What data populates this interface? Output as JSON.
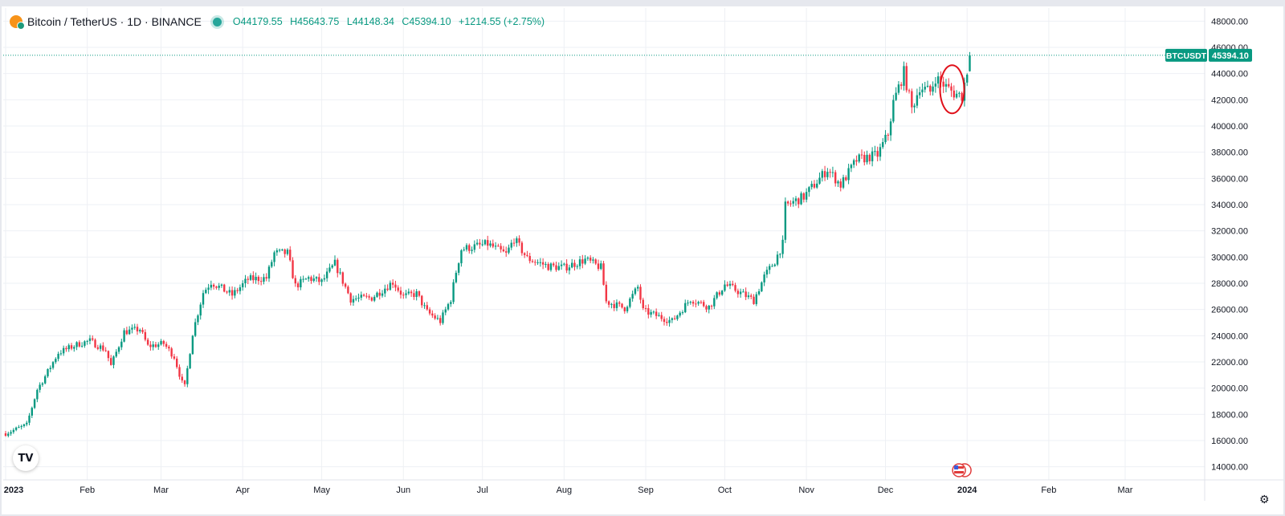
{
  "legend": {
    "symbol": "Bitcoin / TetherUS · 1D · BINANCE",
    "open": "O44179.55",
    "high": "H45643.75",
    "low": "L44148.34",
    "close": "C45394.10",
    "change": "+1214.55 (+2.75%)"
  },
  "price_tag": {
    "ticker": "BTCUSDT",
    "value": "45394.10"
  },
  "colors": {
    "up": "#089981",
    "down": "#f23645",
    "tag_bg": "#089981",
    "annotation": "#e0101a"
  },
  "icons": {
    "logo": "tradingview-logo-icon",
    "settings": "gear-icon",
    "events": "us-flag-icon"
  },
  "chart_data": {
    "type": "candlestick",
    "title": "Bitcoin / TetherUS · 1D · BINANCE",
    "ylim": [
      13000,
      49000
    ],
    "y_ticks": [
      "14000.00",
      "16000.00",
      "18000.00",
      "20000.00",
      "22000.00",
      "24000.00",
      "26000.00",
      "28000.00",
      "30000.00",
      "32000.00",
      "34000.00",
      "36000.00",
      "38000.00",
      "40000.00",
      "42000.00",
      "44000.00",
      "46000.00",
      "48000.00"
    ],
    "x_ticks": [
      "2023",
      "Feb",
      "Mar",
      "Apr",
      "May",
      "Jun",
      "Jul",
      "Aug",
      "Sep",
      "Oct",
      "Nov",
      "Dec",
      "2024",
      "Feb",
      "Mar"
    ],
    "grid": true,
    "last_price": 45394.1,
    "annotation": {
      "type": "ellipse",
      "around_date": "2023-12-26",
      "color": "#e0101a"
    },
    "series_monthly": [
      {
        "date": "2023-01-01",
        "open": 16530,
        "close": 23125
      },
      {
        "date": "2023-02-01",
        "open": 23125,
        "close": 23141
      },
      {
        "date": "2023-03-01",
        "open": 23141,
        "close": 28465
      },
      {
        "date": "2023-04-01",
        "open": 28465,
        "close": 29233
      },
      {
        "date": "2023-05-01",
        "open": 29233,
        "close": 27210
      },
      {
        "date": "2023-06-01",
        "open": 27210,
        "close": 30472
      },
      {
        "date": "2023-07-01",
        "open": 30472,
        "close": 29232
      },
      {
        "date": "2023-08-01",
        "open": 29232,
        "close": 25941
      },
      {
        "date": "2023-09-01",
        "open": 25941,
        "close": 26962
      },
      {
        "date": "2023-10-01",
        "open": 26962,
        "close": 34639
      },
      {
        "date": "2023-11-01",
        "open": 34639,
        "close": 37723
      },
      {
        "date": "2023-12-01",
        "open": 37723,
        "close": 42283
      },
      {
        "date": "2024-01-02",
        "open": 44179.55,
        "close": 45394.1
      }
    ],
    "anchors": [
      [
        "2023-01-01",
        16550
      ],
      [
        "2023-01-09",
        17200
      ],
      [
        "2023-01-13",
        19900
      ],
      [
        "2023-01-16",
        20900
      ],
      [
        "2023-01-21",
        22700
      ],
      [
        "2023-01-29",
        23400
      ],
      [
        "2023-02-02",
        23600
      ],
      [
        "2023-02-08",
        22900
      ],
      [
        "2023-02-10",
        21700
      ],
      [
        "2023-02-15",
        24300
      ],
      [
        "2023-02-21",
        24500
      ],
      [
        "2023-02-24",
        23200
      ],
      [
        "2023-03-02",
        23400
      ],
      [
        "2023-03-06",
        22400
      ],
      [
        "2023-03-09",
        20400
      ],
      [
        "2023-03-10",
        20100
      ],
      [
        "2023-03-13",
        24200
      ],
      [
        "2023-03-17",
        27300
      ],
      [
        "2023-03-20",
        28100
      ],
      [
        "2023-03-28",
        27100
      ],
      [
        "2023-04-03",
        28300
      ],
      [
        "2023-04-10",
        28400
      ],
      [
        "2023-04-13",
        30300
      ],
      [
        "2023-04-18",
        30300
      ],
      [
        "2023-04-21",
        27800
      ],
      [
        "2023-04-26",
        28400
      ],
      [
        "2023-05-01",
        28100
      ],
      [
        "2023-05-06",
        29500
      ],
      [
        "2023-05-12",
        26800
      ],
      [
        "2023-05-20",
        26900
      ],
      [
        "2023-05-28",
        28100
      ],
      [
        "2023-06-01",
        27000
      ],
      [
        "2023-06-06",
        27200
      ],
      [
        "2023-06-10",
        25800
      ],
      [
        "2023-06-15",
        25100
      ],
      [
        "2023-06-19",
        26800
      ],
      [
        "2023-06-21",
        28900
      ],
      [
        "2023-06-23",
        30600
      ],
      [
        "2023-07-03",
        31000
      ],
      [
        "2023-07-10",
        30200
      ],
      [
        "2023-07-13",
        31400
      ],
      [
        "2023-07-18",
        29900
      ],
      [
        "2023-07-26",
        29300
      ],
      [
        "2023-08-01",
        29200
      ],
      [
        "2023-08-09",
        29800
      ],
      [
        "2023-08-15",
        29200
      ],
      [
        "2023-08-17",
        26600
      ],
      [
        "2023-08-24",
        26100
      ],
      [
        "2023-08-29",
        27700
      ],
      [
        "2023-08-31",
        25900
      ],
      [
        "2023-09-11",
        25100
      ],
      [
        "2023-09-18",
        26800
      ],
      [
        "2023-09-25",
        26200
      ],
      [
        "2023-10-01",
        27900
      ],
      [
        "2023-10-05",
        27500
      ],
      [
        "2023-10-12",
        26700
      ],
      [
        "2023-10-16",
        28500
      ],
      [
        "2023-10-20",
        29700
      ],
      [
        "2023-10-23",
        31000
      ],
      [
        "2023-10-24",
        33900
      ],
      [
        "2023-10-31",
        34600
      ],
      [
        "2023-11-09",
        36700
      ],
      [
        "2023-11-14",
        35500
      ],
      [
        "2023-11-20",
        37400
      ],
      [
        "2023-11-28",
        37800
      ],
      [
        "2023-12-02",
        39400
      ],
      [
        "2023-12-04",
        41800
      ],
      [
        "2023-12-08",
        44100
      ],
      [
        "2023-12-11",
        41300
      ],
      [
        "2023-12-14",
        43000
      ],
      [
        "2023-12-18",
        42600
      ],
      [
        "2023-12-20",
        43700
      ],
      [
        "2023-12-24",
        43000
      ],
      [
        "2023-12-27",
        42500
      ],
      [
        "2023-12-30",
        42300
      ],
      [
        "2024-01-01",
        44200
      ],
      [
        "2024-01-02",
        45394.1
      ]
    ]
  }
}
